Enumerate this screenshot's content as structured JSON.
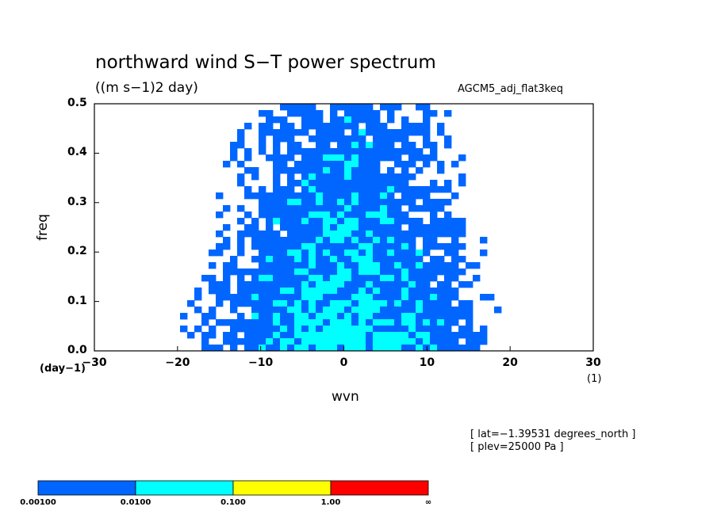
{
  "title": "northward wind S−T power spectrum",
  "units": "((m s−1)2 day)",
  "run_name": "AGCM5_adj_flat3keq",
  "notes": [
    "[ lat=−1.39531 degrees_north ]",
    "[ plev=25000 Pa ]"
  ],
  "chart_data": {
    "type": "heatmap",
    "xlabel": "wvn",
    "ylabel": "freq",
    "x_unit": "(1)",
    "y_unit": "(day−1)",
    "xlim": [
      -30,
      30
    ],
    "ylim": [
      0,
      0.5
    ],
    "x_ticks": [
      -30,
      -20,
      -10,
      0,
      10,
      20,
      30
    ],
    "x_tick_labels": [
      "−30",
      "−20",
      "−10",
      "0",
      "10",
      "20",
      "30"
    ],
    "y_ticks": [
      0.0,
      0.1,
      0.2,
      0.3,
      0.4,
      0.5
    ],
    "y_tick_labels": [
      "0.0",
      "0.1",
      "0.2",
      "0.3",
      "0.4",
      "0.5"
    ],
    "colorbar": {
      "levels": [
        "0.00100",
        "0.0100",
        "0.100",
        "1.00",
        "∞"
      ],
      "colors": [
        "#0066ff",
        "#00ffff",
        "#ffff00",
        "#ff0000"
      ]
    },
    "background_color": "#ffffff"
  }
}
